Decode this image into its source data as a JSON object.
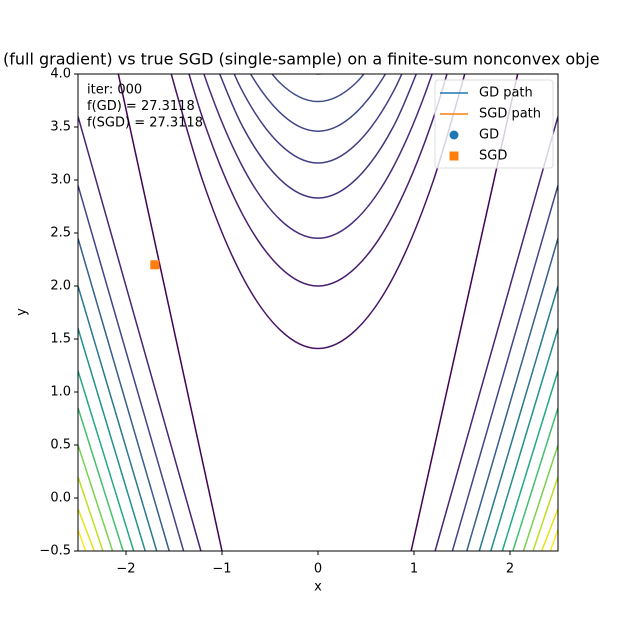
{
  "chart_data": {
    "type": "contour",
    "title": "(full gradient) vs true SGD (single-sample) on a finite-sum nonconvex obje",
    "xlabel": "x",
    "ylabel": "y",
    "annotations": [
      "iter: 000",
      "f(GD)  =  27.3118",
      "f(SGD) =  27.3118"
    ],
    "xlim": [
      -2.5,
      2.5
    ],
    "ylim": [
      -0.5,
      4.0
    ],
    "xticks": [
      {
        "value": -2,
        "label": "−2"
      },
      {
        "value": -1,
        "label": "−1"
      },
      0,
      1,
      2
    ],
    "yticks": [
      {
        "value": -0.5,
        "label": "−0.5"
      },
      {
        "value": 0,
        "label": "0.0"
      },
      0.5,
      {
        "value": 1,
        "label": "1.0"
      },
      1.5,
      {
        "value": 2,
        "label": "2.0"
      },
      2.5,
      {
        "value": 3,
        "label": "3.0"
      },
      3.5,
      {
        "value": 4,
        "label": "4.0"
      }
    ],
    "legend": "upper right",
    "series": [
      {
        "name": "GD path",
        "color": "#1f77b4",
        "style": "line",
        "x": [
          -1.7
        ],
        "y": [
          2.2
        ]
      },
      {
        "name": "SGD path",
        "color": "#ff7f0e",
        "style": "line",
        "x": [
          -1.7
        ],
        "y": [
          2.2
        ]
      },
      {
        "name": "GD",
        "color": "#1f77b4",
        "style": "circle",
        "x": [
          -1.7
        ],
        "y": [
          2.2
        ]
      },
      {
        "name": "SGD",
        "color": "#ff7f0e",
        "style": "square",
        "x": [
          -1.7
        ],
        "y": [
          2.2
        ]
      }
    ],
    "contours": [
      {
        "color": "#471365",
        "x": [
          -1.6,
          -1.2,
          -0.8,
          -0.4,
          0,
          0.4,
          0.8,
          1.2,
          1.6
        ],
        "y": [
          4.23,
          2.99,
          2.11,
          1.59,
          1.41,
          1.59,
          2.11,
          2.99,
          4.23
        ]
      },
      {
        "color": "#481f70",
        "x": [
          -1.6,
          -1.2,
          -0.8,
          -0.4,
          0,
          0.4,
          0.8,
          1.2,
          1.6
        ],
        "y": [
          4.82,
          3.58,
          2.7,
          2.18,
          2.0,
          2.18,
          2.7,
          3.58,
          4.82
        ]
      },
      {
        "color": "#472c7a",
        "x": [
          -1.6,
          -1.2,
          -0.8,
          -0.4,
          0,
          0.4,
          0.8,
          1.2,
          1.6
        ],
        "y": [
          5.27,
          4.03,
          3.15,
          2.63,
          2.45,
          2.63,
          3.15,
          4.03,
          5.27
        ]
      },
      {
        "color": "#46337f",
        "x": [
          -1.2,
          -0.8,
          -0.4,
          0,
          0.4,
          0.8,
          1.2
        ],
        "y": [
          4.41,
          3.53,
          3.01,
          2.83,
          3.01,
          3.53,
          4.41
        ]
      },
      {
        "color": "#433e85",
        "x": [
          -1.2,
          -0.8,
          -0.4,
          0,
          0.4,
          0.8,
          1.2
        ],
        "y": [
          4.74,
          3.86,
          3.34,
          3.16,
          3.34,
          3.86,
          4.74
        ]
      },
      {
        "color": "#404688",
        "x": [
          -1.2,
          -0.8,
          -0.4,
          0,
          0.4,
          0.8,
          1.2
        ],
        "y": [
          5.04,
          4.16,
          3.64,
          3.46,
          3.64,
          4.16,
          5.04
        ]
      },
      {
        "color": "#3e4c8a",
        "x": [
          -0.8,
          -0.4,
          0,
          0.4,
          0.8
        ],
        "y": [
          4.44,
          3.92,
          3.74,
          3.92,
          4.44
        ]
      },
      {
        "color": "#3b528b",
        "x": [
          -0.4,
          0,
          0.4
        ],
        "y": [
          4.18,
          4.0,
          4.18
        ]
      },
      {
        "color": "#440154",
        "x": [
          -1.0,
          -2.08
        ],
        "y": [
          -0.5,
          4.0
        ]
      },
      {
        "color": "#482475",
        "x": [
          -1.22,
          -2.5
        ],
        "y": [
          -0.5,
          3.6
        ]
      },
      {
        "color": "#414487",
        "x": [
          -1.4,
          -2.5
        ],
        "y": [
          -0.5,
          2.95
        ]
      },
      {
        "color": "#355f8d",
        "x": [
          -1.55,
          -2.5
        ],
        "y": [
          -0.5,
          2.45
        ]
      },
      {
        "color": "#2a788e",
        "x": [
          -1.68,
          -2.5
        ],
        "y": [
          -0.5,
          2.0
        ]
      },
      {
        "color": "#21918c",
        "x": [
          -1.8,
          -2.5
        ],
        "y": [
          -0.5,
          1.6
        ]
      },
      {
        "color": "#22a884",
        "x": [
          -1.92,
          -2.5
        ],
        "y": [
          -0.5,
          1.2
        ]
      },
      {
        "color": "#44bf70",
        "x": [
          -2.03,
          -2.5
        ],
        "y": [
          -0.5,
          0.85
        ]
      },
      {
        "color": "#7ad151",
        "x": [
          -2.14,
          -2.5
        ],
        "y": [
          -0.5,
          0.5
        ]
      },
      {
        "color": "#bddf26",
        "x": [
          -2.24,
          -2.5
        ],
        "y": [
          -0.5,
          0.2
        ]
      },
      {
        "color": "#e5e419",
        "x": [
          -2.33,
          -2.5
        ],
        "y": [
          -0.5,
          -0.1
        ]
      },
      {
        "color": "#fde725",
        "x": [
          -2.42,
          -2.5
        ],
        "y": [
          -0.5,
          -0.3
        ]
      },
      {
        "color": "#440154",
        "x": [
          0.97,
          2.08
        ],
        "y": [
          -0.5,
          4.0
        ]
      },
      {
        "color": "#482475",
        "x": [
          1.22,
          2.5
        ],
        "y": [
          -0.5,
          3.6
        ]
      },
      {
        "color": "#414487",
        "x": [
          1.4,
          2.5
        ],
        "y": [
          -0.5,
          2.95
        ]
      },
      {
        "color": "#355f8d",
        "x": [
          1.55,
          2.5
        ],
        "y": [
          -0.5,
          2.45
        ]
      },
      {
        "color": "#2a788e",
        "x": [
          1.68,
          2.5
        ],
        "y": [
          -0.5,
          2.0
        ]
      },
      {
        "color": "#21918c",
        "x": [
          1.8,
          2.5
        ],
        "y": [
          -0.5,
          1.6
        ]
      },
      {
        "color": "#22a884",
        "x": [
          1.92,
          2.5
        ],
        "y": [
          -0.5,
          1.2
        ]
      },
      {
        "color": "#44bf70",
        "x": [
          2.03,
          2.5
        ],
        "y": [
          -0.5,
          0.85
        ]
      },
      {
        "color": "#7ad151",
        "x": [
          2.14,
          2.5
        ],
        "y": [
          -0.5,
          0.5
        ]
      },
      {
        "color": "#bddf26",
        "x": [
          2.24,
          2.5
        ],
        "y": [
          -0.5,
          0.2
        ]
      },
      {
        "color": "#e5e419",
        "x": [
          2.33,
          2.5
        ],
        "y": [
          -0.5,
          -0.1
        ]
      },
      {
        "color": "#fde725",
        "x": [
          2.42,
          2.5
        ],
        "y": [
          -0.5,
          -0.3
        ]
      }
    ]
  }
}
